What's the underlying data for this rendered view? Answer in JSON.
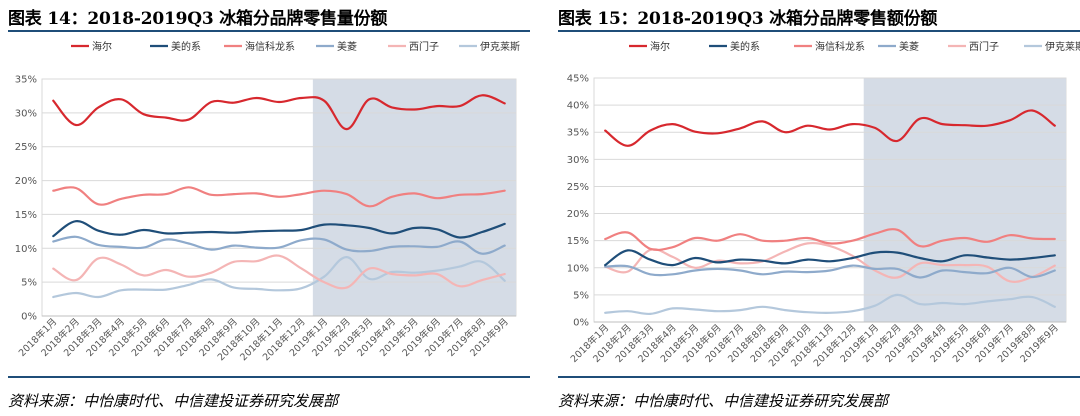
{
  "figures": [
    {
      "title": "图表 14：2018-2019Q3 冰箱分品牌零售量份额",
      "source": "资料来源：中怡康时代、中信建投证券研究发展部"
    },
    {
      "title": "图表 15：2018-2019Q3 冰箱分品牌零售额份额",
      "source": "资料来源：中怡康时代、中信建投证券研究发展部"
    }
  ],
  "chart_data": [
    {
      "type": "line",
      "title": "图表 14：2018-2019Q3 冰箱分品牌零售量份额",
      "xlabel": "",
      "ylabel": "",
      "categories": [
        "2018年1月",
        "2018年2月",
        "2018年3月",
        "2018年4月",
        "2018年5月",
        "2018年6月",
        "2018年7月",
        "2018年8月",
        "2018年9月",
        "2018年10月",
        "2018年11月",
        "2018年12月",
        "2019年1月",
        "2019年2月",
        "2019年3月",
        "2019年4月",
        "2019年5月",
        "2019年6月",
        "2019年7月",
        "2019年8月",
        "2019年9月"
      ],
      "y_ticks": [
        "0%",
        "5%",
        "10%",
        "15%",
        "20%",
        "25%",
        "30%",
        "35%"
      ],
      "ylim": [
        0,
        35
      ],
      "shaded_from_category": "2019年1月",
      "legend_position": "top",
      "series": [
        {
          "name": "海尔",
          "color": "#d7282e",
          "values": [
            31.8,
            28.2,
            30.8,
            32.0,
            29.8,
            29.3,
            29.0,
            31.6,
            31.5,
            32.2,
            31.6,
            32.2,
            31.8,
            27.6,
            32.0,
            30.8,
            30.5,
            31.0,
            31.0,
            32.6,
            31.4
          ]
        },
        {
          "name": "美的系",
          "color": "#1f4e79",
          "values": [
            11.8,
            14.0,
            12.6,
            12.0,
            12.7,
            12.2,
            12.3,
            12.4,
            12.3,
            12.5,
            12.6,
            12.7,
            13.5,
            13.4,
            13.0,
            12.2,
            13.0,
            12.8,
            11.6,
            12.4,
            13.6
          ]
        },
        {
          "name": "海信科龙系",
          "color": "#f08080",
          "values": [
            18.5,
            18.9,
            16.5,
            17.3,
            17.9,
            18.0,
            19.0,
            17.9,
            18.0,
            18.1,
            17.6,
            18.0,
            18.5,
            18.0,
            16.2,
            17.6,
            18.1,
            17.4,
            17.9,
            18.0,
            18.5
          ]
        },
        {
          "name": "美菱",
          "color": "#8eaacb",
          "values": [
            11.0,
            11.7,
            10.5,
            10.2,
            10.1,
            11.3,
            10.7,
            9.8,
            10.4,
            10.1,
            10.1,
            11.2,
            11.3,
            9.8,
            9.6,
            10.2,
            10.3,
            10.2,
            11.0,
            9.2,
            10.4
          ]
        },
        {
          "name": "西门子",
          "color": "#f4b5b5",
          "values": [
            7.0,
            5.3,
            8.5,
            7.6,
            6.0,
            6.8,
            5.8,
            6.4,
            8.0,
            8.1,
            8.9,
            7.0,
            5.0,
            4.2,
            7.0,
            6.2,
            6.0,
            6.2,
            4.4,
            5.3,
            6.2
          ]
        },
        {
          "name": "伊克莱斯",
          "color": "#b4c8dc",
          "values": [
            2.8,
            3.4,
            2.8,
            3.8,
            3.9,
            3.9,
            4.6,
            5.4,
            4.2,
            4.0,
            3.8,
            4.1,
            5.8,
            8.7,
            5.5,
            6.5,
            6.4,
            6.7,
            7.3,
            8.0,
            5.2
          ]
        }
      ]
    },
    {
      "type": "line",
      "title": "图表 15：2018-2019Q3 冰箱分品牌零售额份额",
      "xlabel": "",
      "ylabel": "",
      "categories": [
        "2018年1月",
        "2018年2月",
        "2018年3月",
        "2018年4月",
        "2018年5月",
        "2018年6月",
        "2018年7月",
        "2018年8月",
        "2018年9月",
        "2018年10月",
        "2018年11月",
        "2018年12月",
        "2019年1月",
        "2019年2月",
        "2019年3月",
        "2019年4月",
        "2019年5月",
        "2019年6月",
        "2019年7月",
        "2019年8月",
        "2019年9月"
      ],
      "y_ticks": [
        "0%",
        "5%",
        "10%",
        "15%",
        "20%",
        "25%",
        "30%",
        "35%",
        "40%",
        "45%"
      ],
      "ylim": [
        0,
        45
      ],
      "shaded_from_category": "2019年1月",
      "legend_position": "top",
      "series": [
        {
          "name": "海尔",
          "color": "#d7282e",
          "values": [
            35.3,
            32.5,
            35.3,
            36.5,
            35.1,
            34.8,
            35.7,
            37.0,
            35.0,
            36.2,
            35.5,
            36.5,
            35.8,
            33.4,
            37.5,
            36.5,
            36.3,
            36.2,
            37.2,
            39.0,
            36.2
          ]
        },
        {
          "name": "美的系",
          "color": "#1f4e79",
          "values": [
            10.5,
            13.2,
            11.5,
            10.5,
            11.8,
            11.0,
            11.5,
            11.3,
            10.8,
            11.5,
            11.2,
            11.8,
            12.8,
            12.8,
            11.8,
            11.2,
            12.3,
            11.9,
            11.5,
            11.8,
            12.3
          ]
        },
        {
          "name": "海信科龙系",
          "color": "#f08080",
          "values": [
            15.3,
            16.5,
            13.5,
            13.8,
            15.5,
            15.0,
            16.2,
            15.0,
            15.0,
            15.5,
            14.5,
            15.0,
            16.3,
            17.0,
            14.0,
            15.0,
            15.5,
            14.8,
            16.0,
            15.4,
            15.3
          ]
        },
        {
          "name": "美菱",
          "color": "#8eaacb",
          "values": [
            10.2,
            10.3,
            8.8,
            8.8,
            9.5,
            9.8,
            9.5,
            8.8,
            9.3,
            9.2,
            9.5,
            10.4,
            9.8,
            9.8,
            8.2,
            9.5,
            9.2,
            9.0,
            10.0,
            8.3,
            9.5
          ]
        },
        {
          "name": "西门子",
          "color": "#f4b5b5",
          "values": [
            10.2,
            9.3,
            13.3,
            12.0,
            10.0,
            11.3,
            10.8,
            11.2,
            13.0,
            14.5,
            14.0,
            12.2,
            9.5,
            8.2,
            10.8,
            10.5,
            10.5,
            10.2,
            7.5,
            8.3,
            10.4
          ]
        },
        {
          "name": "伊克莱斯",
          "color": "#b4c8dc",
          "values": [
            1.7,
            2.0,
            1.5,
            2.5,
            2.3,
            2.0,
            2.2,
            2.8,
            2.2,
            1.8,
            1.7,
            2.0,
            3.0,
            5.0,
            3.3,
            3.5,
            3.3,
            3.8,
            4.2,
            4.6,
            2.8
          ]
        }
      ]
    }
  ]
}
